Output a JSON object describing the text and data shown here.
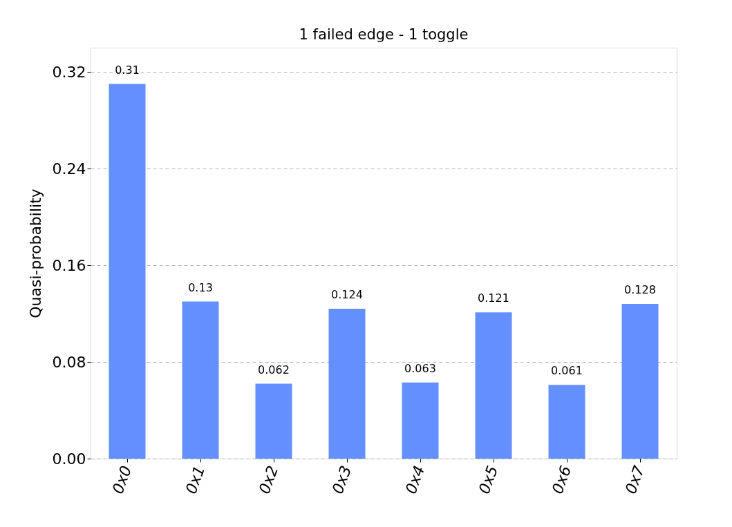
{
  "chart_data": {
    "type": "bar",
    "title": "1 failed edge - 1 toggle",
    "ylabel": "Quasi-probability",
    "categories": [
      "0x0",
      "0x1",
      "0x2",
      "0x3",
      "0x4",
      "0x5",
      "0x6",
      "0x7"
    ],
    "values": [
      0.31,
      0.13,
      0.062,
      0.124,
      0.063,
      0.121,
      0.061,
      0.128
    ],
    "color": "#648fff",
    "ylim": [
      0,
      0.34
    ],
    "yticks": [
      {
        "value": 0,
        "label": "0.00"
      },
      {
        "value": 0.08,
        "label": "0.08"
      },
      {
        "value": 0.16,
        "label": "0.16"
      },
      {
        "value": 0.24,
        "label": "0.24"
      },
      {
        "value": 0.32,
        "label": "0.32"
      }
    ],
    "grid": "y",
    "data_labels": true
  }
}
